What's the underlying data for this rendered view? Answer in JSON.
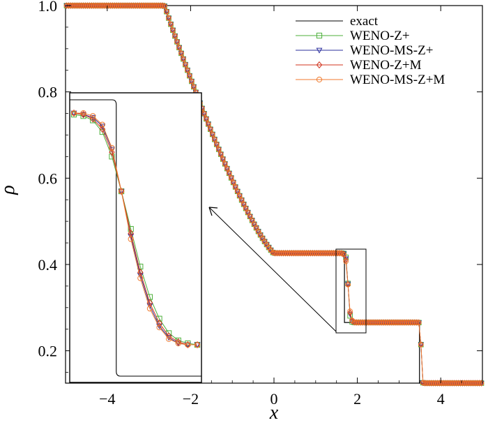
{
  "chart_data": {
    "type": "line",
    "xlabel": "x",
    "ylabel": "ρ",
    "xlim": [
      -5,
      5
    ],
    "ylim": [
      0.125,
      1.0
    ],
    "xticks": [
      -4,
      -2,
      0,
      2,
      4
    ],
    "xtick_labels": [
      "−4",
      "−2",
      "0",
      "2",
      "4"
    ],
    "yticks": [
      0.2,
      0.4,
      0.6,
      0.8,
      1.0
    ],
    "ytick_labels": [
      "0.2",
      "0.4",
      "0.6",
      "0.8",
      "1.0"
    ],
    "grid": false,
    "legend_position": "top-right",
    "series": [
      {
        "name": "exact",
        "color": "#000000",
        "marker": "none"
      },
      {
        "name": "WENO-Z+",
        "color": "#4caf3a",
        "marker": "square"
      },
      {
        "name": "WENO-MS-Z+",
        "color": "#2b2f9e",
        "marker": "triangle-down"
      },
      {
        "name": "WENO-Z+M",
        "color": "#d1341f",
        "marker": "diamond"
      },
      {
        "name": "WENO-MS-Z+M",
        "color": "#f07a2c",
        "marker": "circle"
      }
    ],
    "exact_solution": {
      "x": [
        -5,
        -2.633,
        0,
        1.69,
        1.69,
        3.49,
        3.49,
        5
      ],
      "y": [
        1.0,
        1.0,
        0.4263,
        0.4263,
        0.2656,
        0.2656,
        0.125,
        0.125
      ],
      "rarefaction_segment": "between x = -2.633 and x = 0"
    },
    "zoom_region": {
      "xlim": [
        1.45,
        2.2
      ],
      "ylim": [
        0.24,
        0.44
      ]
    },
    "inset": {
      "description_points": {
        "WENO-Z+": [
          [
            1.45,
            0.425
          ],
          [
            1.52,
            0.424
          ],
          [
            1.58,
            0.421
          ],
          [
            1.63,
            0.413
          ],
          [
            1.67,
            0.396
          ],
          [
            1.7,
            0.372
          ],
          [
            1.73,
            0.346
          ],
          [
            1.76,
            0.32
          ],
          [
            1.79,
            0.299
          ],
          [
            1.82,
            0.284
          ],
          [
            1.86,
            0.274
          ],
          [
            1.9,
            0.269
          ],
          [
            1.96,
            0.267
          ],
          [
            2.05,
            0.266
          ]
        ],
        "WENO-MS-Z+": [
          [
            1.45,
            0.426
          ],
          [
            1.52,
            0.425
          ],
          [
            1.58,
            0.423
          ],
          [
            1.63,
            0.417
          ],
          [
            1.67,
            0.401
          ],
          [
            1.7,
            0.372
          ],
          [
            1.73,
            0.341
          ],
          [
            1.76,
            0.314
          ],
          [
            1.79,
            0.293
          ],
          [
            1.82,
            0.279
          ],
          [
            1.86,
            0.271
          ],
          [
            1.9,
            0.267
          ],
          [
            1.96,
            0.266
          ],
          [
            2.05,
            0.266
          ]
        ],
        "WENO-Z+M": [
          [
            1.45,
            0.426
          ],
          [
            1.52,
            0.425
          ],
          [
            1.58,
            0.422
          ],
          [
            1.63,
            0.415
          ],
          [
            1.67,
            0.399
          ],
          [
            1.7,
            0.372
          ],
          [
            1.73,
            0.343
          ],
          [
            1.76,
            0.316
          ],
          [
            1.79,
            0.295
          ],
          [
            1.82,
            0.281
          ],
          [
            1.86,
            0.272
          ],
          [
            1.9,
            0.268
          ],
          [
            1.96,
            0.266
          ],
          [
            2.05,
            0.266
          ]
        ],
        "WENO-MS-Z+M": [
          [
            1.45,
            0.426
          ],
          [
            1.52,
            0.426
          ],
          [
            1.58,
            0.424
          ],
          [
            1.63,
            0.418
          ],
          [
            1.67,
            0.402
          ],
          [
            1.7,
            0.372
          ],
          [
            1.73,
            0.339
          ],
          [
            1.76,
            0.312
          ],
          [
            1.79,
            0.291
          ],
          [
            1.82,
            0.278
          ],
          [
            1.86,
            0.27
          ],
          [
            1.9,
            0.267
          ],
          [
            1.96,
            0.266
          ],
          [
            2.05,
            0.266
          ]
        ]
      }
    }
  }
}
